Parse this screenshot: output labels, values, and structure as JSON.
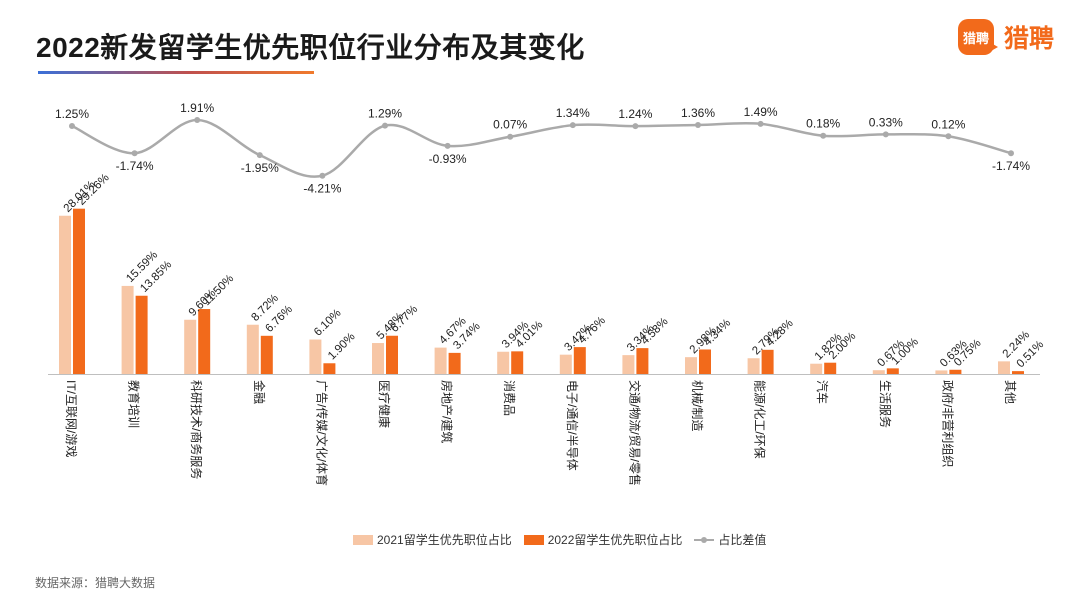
{
  "header": {
    "title": "2022新发留学生优先职位行业分布及其变化"
  },
  "logo": {
    "badge_text": "猎聘",
    "text": "猎聘"
  },
  "colors": {
    "series_2021": "#f7c6a5",
    "series_2022": "#f26a1b",
    "diff_line": "#aaaaaa"
  },
  "footer": {
    "source": "数据来源：猎聘大数据"
  },
  "chart_data": {
    "type": "bar",
    "title": "2022新发留学生优先职位行业分布及其变化",
    "categories": [
      "IT/互联网/游戏",
      "教育培训",
      "科研技术/商务服务",
      "金融",
      "广告/传媒/文化/体育",
      "医疗健康",
      "房地产/建筑",
      "消费品",
      "电子/通信/半导体",
      "交通/物流/贸易/零售",
      "机械/制造",
      "能源/化工/环保",
      "汽车",
      "生活服务",
      "政府/非营利组织",
      "其他"
    ],
    "series": [
      {
        "name": "2021留学生优先职位占比",
        "type": "bar",
        "unit": "%",
        "values": [
          28.01,
          15.59,
          9.6,
          8.72,
          6.1,
          5.48,
          4.67,
          3.94,
          3.42,
          3.34,
          2.98,
          2.79,
          1.82,
          0.67,
          0.63,
          2.24
        ]
      },
      {
        "name": "2022留学生优先职位占比",
        "type": "bar",
        "unit": "%",
        "values": [
          29.26,
          13.85,
          11.5,
          6.76,
          1.9,
          6.77,
          3.74,
          4.01,
          4.76,
          4.58,
          4.34,
          4.28,
          2.0,
          1.0,
          0.75,
          0.51
        ]
      },
      {
        "name": "占比差值",
        "type": "line",
        "unit": "%",
        "values": [
          1.25,
          -1.74,
          1.91,
          -1.95,
          -4.21,
          1.29,
          -0.93,
          0.07,
          1.34,
          1.24,
          1.36,
          1.49,
          0.18,
          0.33,
          0.12,
          -1.74
        ]
      }
    ],
    "legend": "bottom",
    "grid": false
  }
}
